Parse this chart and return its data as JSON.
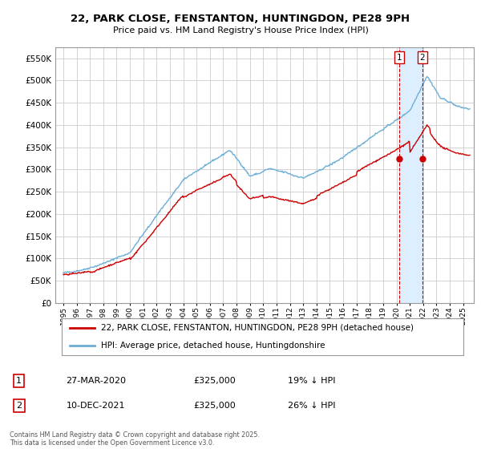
{
  "title_line1": "22, PARK CLOSE, FENSTANTON, HUNTINGDON, PE28 9PH",
  "title_line2": "Price paid vs. HM Land Registry's House Price Index (HPI)",
  "legend_label1": "22, PARK CLOSE, FENSTANTON, HUNTINGDON, PE28 9PH (detached house)",
  "legend_label2": "HPI: Average price, detached house, Huntingdonshire",
  "annotation1": [
    "1",
    "27-MAR-2020",
    "£325,000",
    "19% ↓ HPI"
  ],
  "annotation2": [
    "2",
    "10-DEC-2021",
    "£325,000",
    "26% ↓ HPI"
  ],
  "footnote": "Contains HM Land Registry data © Crown copyright and database right 2025.\nThis data is licensed under the Open Government Licence v3.0.",
  "hpi_color": "#6baed6",
  "price_color": "#cc0000",
  "vline_color": "#cc0000",
  "shade_color": "#ddeeff",
  "background_color": "#ffffff",
  "plot_bg_color": "#ffffff",
  "grid_color": "#cccccc",
  "ylim": [
    0,
    575000
  ],
  "yticks": [
    0,
    50000,
    100000,
    150000,
    200000,
    250000,
    300000,
    350000,
    400000,
    450000,
    500000,
    550000
  ],
  "marker1_x": 2020.23,
  "marker2_x": 2021.94,
  "marker1_y": 325000,
  "marker2_y": 325000,
  "vline1_x": 2020.23,
  "vline2_x": 2021.94,
  "xlim_left": 1994.4,
  "xlim_right": 2025.8
}
